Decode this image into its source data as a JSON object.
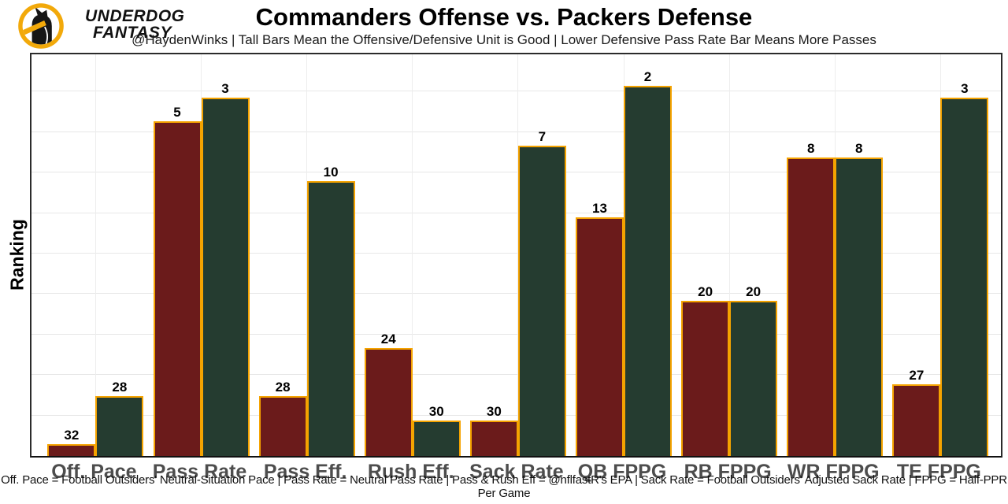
{
  "header": {
    "brand_line1": "UNDERDOG",
    "brand_line2": "FANTASY",
    "logo_icon": "underdog-fantasy-dog-logo",
    "logo_colors": {
      "ring": "#F2A90A",
      "inner": "#ffffff",
      "dog": "#161616"
    }
  },
  "title": "Commanders Offense vs. Packers Defense",
  "subtitle": "@HaydenWinks | Tall Bars Mean the Offensive/Defensive Unit is Good | Lower Defensive Pass Rate Bar Means More Passes",
  "chart_data": {
    "type": "bar",
    "title": "Commanders Offense vs. Packers Defense",
    "ylabel": "Ranking",
    "categories": [
      "Off. Pace",
      "Pass Rate",
      "Pass Eff.",
      "Rush Eff.",
      "Sack Rate",
      "QB FPPG",
      "RB FPPG",
      "WR FPPG",
      "TE FPPG"
    ],
    "series": [
      {
        "name": "Commanders Offense",
        "color": "#6B1B1B",
        "values": [
          32,
          5,
          28,
          24,
          30,
          13,
          20,
          8,
          27
        ]
      },
      {
        "name": "Packers Defense",
        "color": "#253C30",
        "values": [
          28,
          3,
          10,
          30,
          7,
          2,
          20,
          8,
          3
        ]
      }
    ],
    "value_meaning": "NFL ranking, 1 = best of 33-scale; taller bar = better rank",
    "rank_range": [
      1,
      33
    ],
    "bar_outline_color": "#F5A300",
    "bar_value_labels": true,
    "grid": true,
    "legend": "none"
  },
  "footer": {
    "glossary": "Off. Pace = Football Outsiders' Neutral-Situation Pace | Pass Rate = Neutral Pass Rate | Pass & Rush Eff = @nflfastR's EPA | Sack Rate = Football Outsiders' Adjusted Sack Rate | FPPG = Half-PPR Per Game"
  }
}
